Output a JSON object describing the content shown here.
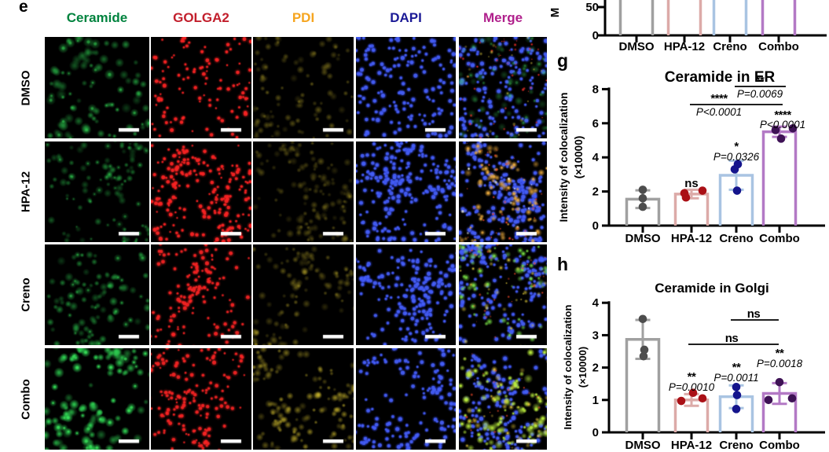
{
  "panel_e": {
    "label": "e",
    "columns": [
      {
        "label": "Ceramide",
        "color": "#00833e"
      },
      {
        "label": "GOLGA2",
        "color": "#c21f2c"
      },
      {
        "label": "PDI",
        "color": "#f6a51f"
      },
      {
        "label": "DAPI",
        "color": "#1b1a96"
      },
      {
        "label": "Merge",
        "color": "#b0208c"
      }
    ],
    "rows": [
      {
        "label": "DMSO"
      },
      {
        "label": "HPA-12"
      },
      {
        "label": "Creno"
      },
      {
        "label": "Combo"
      }
    ],
    "scale_bar_color": "#ffffff"
  },
  "chart_data": [
    {
      "id": "f_partial",
      "type": "bar",
      "partial": true,
      "visible_yticks": [
        "50",
        "0"
      ],
      "visible_ylabel_fragment": "M",
      "categories": [
        "DMSO",
        "HPA-12",
        "Creno",
        "Combo"
      ],
      "bar_colors": [
        "#a0a0a0",
        "#dcaaa8",
        "#a9c4e2",
        "#b379c5"
      ]
    },
    {
      "id": "g",
      "type": "bar",
      "panel_label": "g",
      "title": "Ceramide in ER",
      "ylabel": "Intensity of colocalization",
      "ylabel2": "(×10000)",
      "ylim": [
        0,
        8
      ],
      "yticks": [
        0,
        2,
        4,
        6,
        8
      ],
      "categories": [
        "DMSO",
        "HPA-12",
        "Creno",
        "Combo"
      ],
      "bar_colors": [
        "#a0a0a0",
        "#dcaaa8",
        "#a9c4e2",
        "#b379c5"
      ],
      "dot_colors": [
        "#4d4d4d",
        "#aa1016",
        "#14148c",
        "#3e1255"
      ],
      "means": [
        1.55,
        1.85,
        2.95,
        5.5
      ],
      "errors": [
        0.52,
        0.25,
        0.85,
        0.3
      ],
      "points": [
        [
          1.1,
          1.6,
          2.1
        ],
        [
          1.65,
          1.9,
          2.05
        ],
        [
          2.05,
          3.3,
          3.6
        ],
        [
          5.1,
          5.6,
          5.7
        ]
      ],
      "annotations": {
        "above_bars": [
          null,
          {
            "category": "HPA-12",
            "text": "ns"
          },
          {
            "category": "Creno",
            "stars": "*",
            "p": "P=0.0326"
          },
          {
            "category": "Combo",
            "stars": "****",
            "p": "P<0.0001"
          }
        ],
        "brackets": [
          {
            "from": "Creno",
            "to": "Combo",
            "stars": "**",
            "p": "P=0.0069"
          },
          {
            "from": "HPA-12",
            "to": "Combo",
            "stars": "****",
            "p": "P<0.0001"
          }
        ]
      }
    },
    {
      "id": "h",
      "type": "bar",
      "panel_label": "h",
      "title": "Ceramide in Golgi",
      "ylabel": "Intensity of colocalization",
      "ylabel2": "(×10000)",
      "ylim": [
        0,
        4
      ],
      "yticks": [
        0,
        1,
        2,
        3,
        4
      ],
      "categories": [
        "DMSO",
        "HPA-12",
        "Creno",
        "Combo"
      ],
      "bar_colors": [
        "#a0a0a0",
        "#dcaaa8",
        "#a9c4e2",
        "#b379c5"
      ],
      "dot_colors": [
        "#4d4d4d",
        "#aa1016",
        "#14148c",
        "#3e1255"
      ],
      "means": [
        2.87,
        1.0,
        1.1,
        1.2
      ],
      "errors": [
        0.6,
        0.18,
        0.35,
        0.32
      ],
      "points": [
        [
          2.35,
          2.55,
          3.5
        ],
        [
          0.97,
          1.22,
          1.05
        ],
        [
          0.72,
          1.15,
          1.4
        ],
        [
          1.0,
          1.55,
          1.05
        ]
      ],
      "annotations": {
        "above_bars": [
          null,
          {
            "category": "HPA-12",
            "stars": "**",
            "p": "P=0.0010"
          },
          {
            "category": "Creno",
            "stars": "**",
            "p": "P=0.0011"
          },
          {
            "category": "Combo",
            "stars": "**",
            "p": "P=0.0018"
          }
        ],
        "brackets": [
          {
            "from": "Creno",
            "to": "Combo",
            "text": "ns"
          },
          {
            "from": "HPA-12",
            "to": "Combo",
            "text": "ns"
          }
        ]
      }
    }
  ]
}
